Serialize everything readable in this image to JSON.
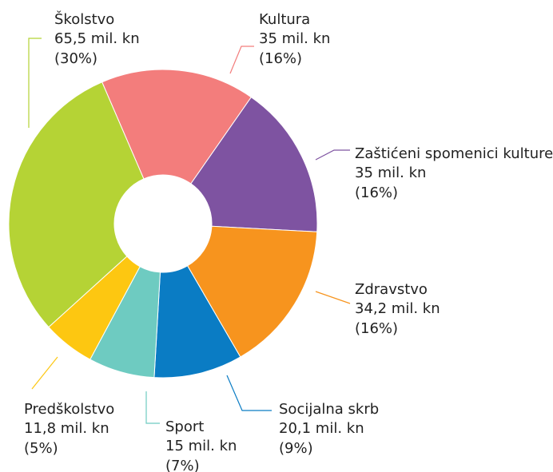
{
  "chart_data": {
    "type": "donut",
    "categories": [
      "Kultura",
      "Zaštićeni spomenici kulture",
      "Zdravstvo",
      "Socijalna skrb",
      "Sport",
      "Predškolstvo",
      "Školstvo"
    ],
    "values": [
      35,
      35,
      34.2,
      20.1,
      15,
      11.8,
      65.5
    ],
    "value_labels": [
      "35 mil. kn",
      "35 mil. kn",
      "34,2 mil. kn",
      "20,1 mil. kn",
      "15 mil. kn",
      "11,8 mil. kn",
      "65,5 mil. kn"
    ],
    "percentages": [
      16,
      16,
      16,
      9,
      7,
      5,
      30
    ],
    "percentage_labels": [
      "(16%)",
      "(16%)",
      "(16%)",
      "(9%)",
      "(7%)",
      "(5%)",
      "(30%)"
    ],
    "colors": [
      "#f37d7c",
      "#7e53a1",
      "#f7941e",
      "#0a7cc4",
      "#6ecbc1",
      "#fdc711",
      "#b5d335"
    ]
  }
}
